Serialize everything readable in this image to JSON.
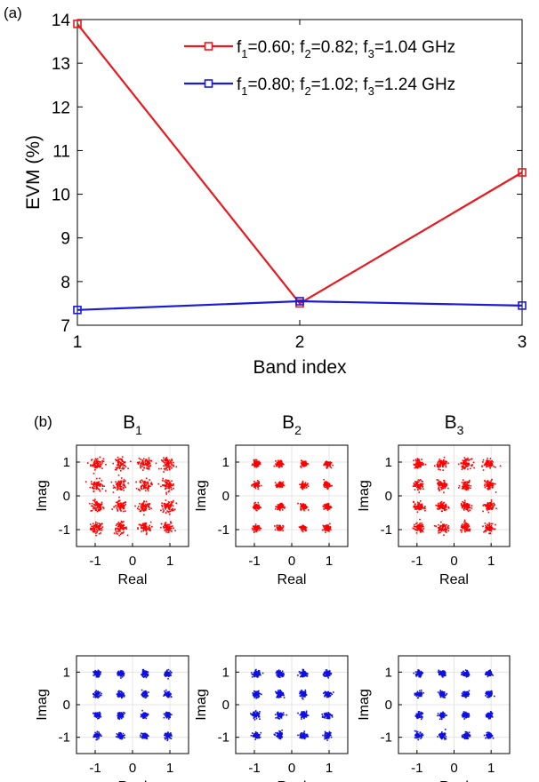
{
  "panel_labels": {
    "a": "(a)",
    "b": "(b)"
  },
  "chart_data": [
    {
      "type": "line",
      "xlabel": "Band index",
      "ylabel": "EVM (%)",
      "xlim": [
        1,
        3
      ],
      "ylim": [
        7,
        14
      ],
      "x_ticks": [
        1,
        2,
        3
      ],
      "y_ticks": [
        7,
        8,
        9,
        10,
        11,
        12,
        13,
        14
      ],
      "x": [
        1,
        2,
        3
      ],
      "grid": false,
      "legend_position": "top-right",
      "series": [
        {
          "name": "f1=0.60; f2=0.82; f3=1.04 GHz",
          "legend": {
            "a": "f",
            "s1": "1",
            "b": "=0.60; f",
            "s2": "2",
            "c": "=0.82; f",
            "s3": "3",
            "d": "=1.04 GHz"
          },
          "color": "#e8191f",
          "marker": "square",
          "values": [
            13.9,
            7.5,
            10.5
          ]
        },
        {
          "name": "f1=0.80; f2=1.02; f3=1.24 GHz",
          "legend": {
            "a": "f",
            "s1": "1",
            "b": "=0.80; f",
            "s2": "2",
            "c": "=1.02; f",
            "s3": "3",
            "d": "=1.24 GHz"
          },
          "color": "#1b1bd6",
          "marker": "square",
          "values": [
            7.35,
            7.55,
            7.45
          ]
        }
      ]
    },
    {
      "type": "scatter",
      "grid": true,
      "xlabel": "Real",
      "ylabel": "Imag",
      "xlim": [
        -1.5,
        1.5
      ],
      "ylim": [
        -1.5,
        1.5
      ],
      "x_ticks": [
        -1,
        0,
        1
      ],
      "y_ticks": [
        -1,
        0,
        1
      ],
      "constellation_points": [
        -0.95,
        -0.32,
        0.32,
        0.95
      ],
      "columns": [
        {
          "title": "B",
          "sub": "1"
        },
        {
          "title": "B",
          "sub": "2"
        },
        {
          "title": "B",
          "sub": "3"
        }
      ],
      "rows": [
        {
          "color": "#ff0000",
          "spread": [
            0.085,
            0.045,
            0.07
          ]
        },
        {
          "color": "#1010e0",
          "spread": [
            0.045,
            0.05,
            0.045
          ]
        }
      ]
    }
  ]
}
